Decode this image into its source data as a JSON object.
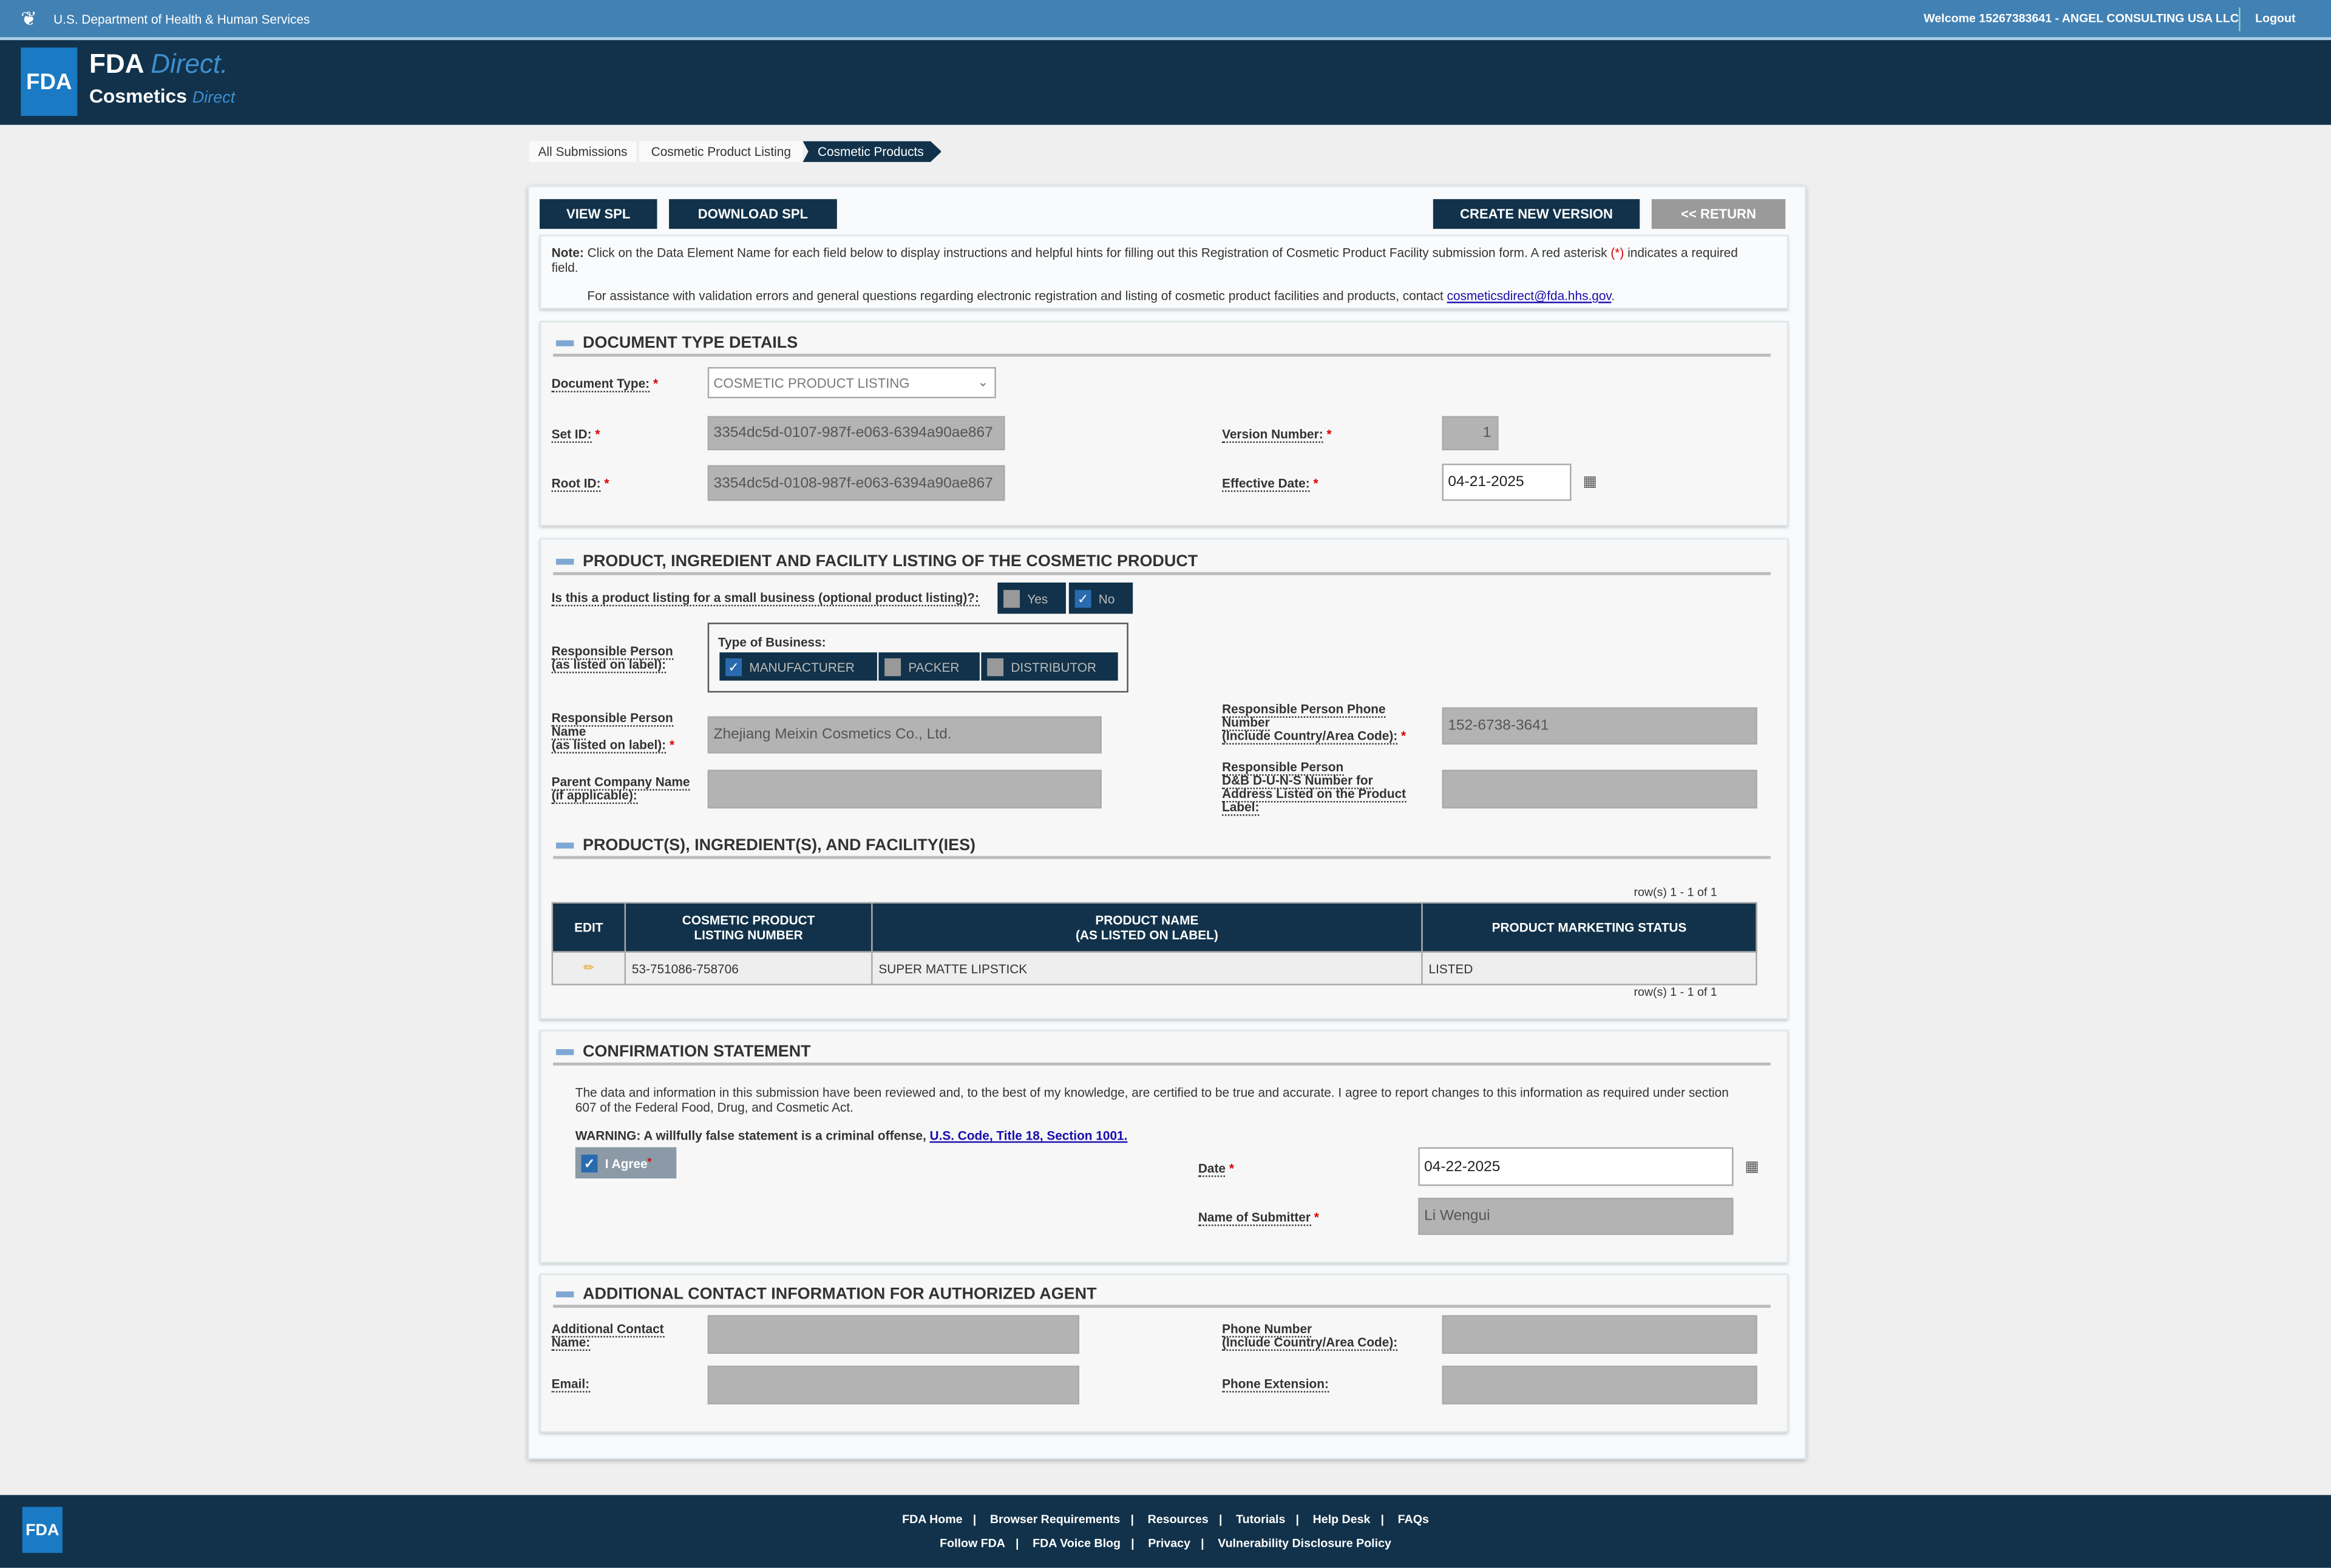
{
  "topbar": {
    "agency": "U.S. Department of Health & Human Services",
    "agency_bold": "Health & Human Services",
    "welcome": "Welcome 15267383641 - ANGEL CONSULTING USA LLC",
    "logout": "Logout"
  },
  "header": {
    "logo": "FDA",
    "title1": "FDA",
    "title1b": "Direct.",
    "title2": "Cosmetics",
    "title2b": "Direct"
  },
  "breadcrumb": [
    "All Submissions",
    "Cosmetic Product Listing",
    "Cosmetic Products"
  ],
  "toolbar": {
    "view_spl": "VIEW SPL",
    "download_spl": "DOWNLOAD SPL",
    "create_new_version": "CREATE NEW VERSION",
    "return": "<< RETURN"
  },
  "note": {
    "bold": "Note:",
    "text": " Click on the Data Element Name for each field below to display instructions and helpful hints for filling out this Registration of Cosmetic Product Facility submission form. A red asterisk ",
    "asterisk": "(*)",
    "text2": " indicates a required field.",
    "assist": "For assistance with validation errors and general questions regarding electronic registration and listing of cosmetic product facilities and products, contact ",
    "email": "cosmeticsdirect@fda.hhs.gov",
    "email_end": "."
  },
  "doc": {
    "heading": "DOCUMENT TYPE DETAILS",
    "doc_type_label": "Document Type:",
    "doc_type_value": "COSMETIC PRODUCT LISTING",
    "set_id_label": "Set ID:",
    "set_id": "3354dc5d-0107-987f-e063-6394a90ae867",
    "root_id_label": "Root ID:",
    "root_id": "3354dc5d-0108-987f-e063-6394a90ae867",
    "version_label": "Version Number:",
    "version": "1",
    "effective_label": "Effective Date:",
    "effective": "04-21-2025"
  },
  "listing": {
    "heading": "PRODUCT, INGREDIENT AND FACILITY LISTING OF THE COSMETIC PRODUCT",
    "small_biz_label": "Is this a product listing for a small business (optional product listing)?:",
    "yes": "Yes",
    "no": "No",
    "small_biz_selected": "No",
    "rp_label1": "Responsible Person",
    "rp_label2": "(as listed on label):",
    "type_label": "Type of Business:",
    "types": [
      {
        "label": "MANUFACTURER",
        "checked": true
      },
      {
        "label": "PACKER",
        "checked": false
      },
      {
        "label": "DISTRIBUTOR",
        "checked": false
      }
    ],
    "rp_name_l1": "Responsible Person",
    "rp_name_l2": "Name",
    "rp_name_l3": "(as listed on label):",
    "rp_name": "Zhejiang Meixin Cosmetics Co., Ltd.",
    "parent_l1": "Parent Company Name",
    "parent_l2": "(if applicable):",
    "parent": "",
    "phone_l1": "Responsible Person Phone",
    "phone_l2": "Number",
    "phone_l3": "(Include Country/Area Code):",
    "phone": "152-6738-3641",
    "duns_l1": "Responsible Person",
    "duns_l2": "D&B D-U-N-S Number for",
    "duns_l3": "Address Listed on the Product",
    "duns_l4": "Label:",
    "duns": ""
  },
  "products": {
    "heading": "PRODUCT(S), INGREDIENT(S), AND FACILITY(IES)",
    "rows_info": "row(s) 1 - 1 of 1",
    "columns": [
      "EDIT",
      "COSMETIC PRODUCT\nLISTING NUMBER",
      "PRODUCT NAME\n(AS LISTED ON LABEL)",
      "PRODUCT MARKETING STATUS"
    ],
    "rows": [
      {
        "listing_number": "53-751086-758706",
        "product_name": "SUPER MATTE LIPSTICK",
        "status": "LISTED"
      }
    ]
  },
  "confirm": {
    "heading": "CONFIRMATION STATEMENT",
    "text": "The data and information in this submission have been reviewed and, to the best of my knowledge, are certified to be true and accurate. I agree to report changes to this information as required under section 607 of the Federal Food, Drug, and Cosmetic Act.",
    "warning": "WARNING: A willfully false statement is a criminal offense, ",
    "warning_link": "U.S. Code, Title 18, Section 1001.",
    "agree": "I Agree",
    "agree_checked": true,
    "date_label": "Date",
    "date": "04-22-2025",
    "submitter_label": "Name of Submitter",
    "submitter": "Li Wengui"
  },
  "agent": {
    "heading": "ADDITIONAL CONTACT INFORMATION FOR AUTHORIZED AGENT",
    "name_l1": "Additional Contact",
    "name_l2": "Name:",
    "email_label": "Email:",
    "phone_l1": "Phone Number",
    "phone_l2": "(Include Country/Area Code):",
    "ext_label": "Phone Extension:",
    "name": "",
    "email": "",
    "phone": "",
    "ext": ""
  },
  "footer": {
    "logo": "FDA",
    "row1": [
      "FDA Home",
      "Browser Requirements",
      "Resources",
      "Tutorials",
      "Help Desk",
      "FAQs"
    ],
    "row2": [
      "Follow FDA",
      "FDA Voice Blog",
      "Privacy",
      "Vulnerability Disclosure Policy"
    ]
  },
  "colors": {
    "navy": "#11324a",
    "steel_blue": "#4281b3",
    "disabled_input": "#b3b3b3",
    "required": "#dd0000"
  }
}
